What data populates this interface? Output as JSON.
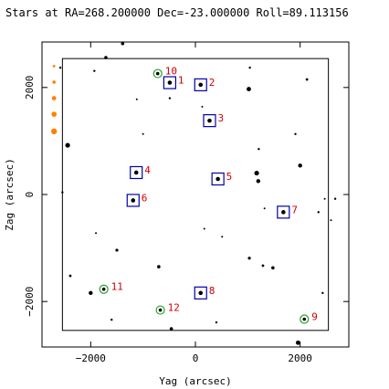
{
  "chart_data": {
    "type": "scatter",
    "title": "Stars at RA=268.200000 Dec=-23.000000 Roll=89.113156",
    "xlabel": "Yag (arcsec)",
    "ylabel": "Zag (arcsec)",
    "xlim": [
      -2930,
      2930
    ],
    "ylim": [
      -2850,
      2850
    ],
    "x_ticks": [
      -2000,
      0,
      2000
    ],
    "x_tick_labels": [
      "−2000",
      "0",
      "2000"
    ],
    "y_ticks": [
      -2000,
      0,
      2000
    ],
    "y_tick_labels": [
      "−2000",
      "0",
      "2000"
    ],
    "grid": false,
    "field_box": {
      "yag": [
        -2540,
        2540
      ],
      "zag": [
        -2540,
        2540
      ]
    },
    "colors": {
      "star": "#000000",
      "guide": "#0000aa",
      "acq": "#2aa02a",
      "label": "#d00000",
      "bad_star": "#ff8000"
    },
    "guide_stars": [
      {
        "id": "1",
        "yag": -490,
        "zag": 2090
      },
      {
        "id": "2",
        "yag": 100,
        "zag": 2050
      },
      {
        "id": "3",
        "yag": 270,
        "zag": 1380
      },
      {
        "id": "4",
        "yag": -1130,
        "zag": 410
      },
      {
        "id": "5",
        "yag": 430,
        "zag": 290
      },
      {
        "id": "6",
        "yag": -1190,
        "zag": -110
      },
      {
        "id": "7",
        "yag": 1680,
        "zag": -330
      },
      {
        "id": "8",
        "yag": 100,
        "zag": -1840
      }
    ],
    "acq_stars": [
      {
        "id": "9",
        "yag": 2080,
        "zag": -2330
      },
      {
        "id": "10",
        "yag": -720,
        "zag": 2260
      },
      {
        "id": "11",
        "yag": -1750,
        "zag": -1770
      },
      {
        "id": "12",
        "yag": -670,
        "zag": -2160
      }
    ],
    "bad_stars": [
      {
        "yag": -2700,
        "zag": 2400,
        "size": 1.4
      },
      {
        "yag": -2700,
        "zag": 2100,
        "size": 1.8
      },
      {
        "yag": -2700,
        "zag": 1800,
        "size": 2.4
      },
      {
        "yag": -2700,
        "zag": 1500,
        "size": 2.8
      },
      {
        "yag": -2700,
        "zag": 1180,
        "size": 3.2
      }
    ],
    "field_stars": [
      {
        "yag": -1390,
        "zag": 2820,
        "size": 1.8
      },
      {
        "yag": -1710,
        "zag": 2560,
        "size": 1.8
      },
      {
        "yag": -1930,
        "zag": 2310,
        "size": 1.2
      },
      {
        "yag": -2580,
        "zag": 2370,
        "size": 1.2
      },
      {
        "yag": 1040,
        "zag": 2370,
        "size": 1.2
      },
      {
        "yag": 2130,
        "zag": 2150,
        "size": 1.4
      },
      {
        "yag": 1020,
        "zag": 1970,
        "size": 2.4
      },
      {
        "yag": -490,
        "zag": 1800,
        "size": 1.2
      },
      {
        "yag": -1120,
        "zag": 1780,
        "size": 1.0
      },
      {
        "yag": 130,
        "zag": 1640,
        "size": 1.0
      },
      {
        "yag": 1910,
        "zag": 1130,
        "size": 1.2
      },
      {
        "yag": -1000,
        "zag": 1130,
        "size": 1.0
      },
      {
        "yag": -2440,
        "zag": 920,
        "size": 2.6
      },
      {
        "yag": 1210,
        "zag": 850,
        "size": 1.2
      },
      {
        "yag": 2000,
        "zag": 540,
        "size": 2.2
      },
      {
        "yag": 1170,
        "zag": 400,
        "size": 2.6
      },
      {
        "yag": 1200,
        "zag": 250,
        "size": 2.2
      },
      {
        "yag": -2540,
        "zag": 40,
        "size": 1.2
      },
      {
        "yag": 2470,
        "zag": -80,
        "size": 1.0
      },
      {
        "yag": 2670,
        "zag": -80,
        "size": 1.2
      },
      {
        "yag": 1320,
        "zag": -260,
        "size": 1.0
      },
      {
        "yag": 2350,
        "zag": -330,
        "size": 1.2
      },
      {
        "yag": 2590,
        "zag": -480,
        "size": 1.0
      },
      {
        "yag": 170,
        "zag": -640,
        "size": 1.0
      },
      {
        "yag": -1900,
        "zag": -720,
        "size": 1.0
      },
      {
        "yag": 510,
        "zag": -790,
        "size": 1.0
      },
      {
        "yag": -1500,
        "zag": -1040,
        "size": 1.6
      },
      {
        "yag": 1030,
        "zag": -1190,
        "size": 1.6
      },
      {
        "yag": 1290,
        "zag": -1330,
        "size": 1.4
      },
      {
        "yag": 1480,
        "zag": -1370,
        "size": 1.8
      },
      {
        "yag": -700,
        "zag": -1350,
        "size": 1.8
      },
      {
        "yag": -2390,
        "zag": -1520,
        "size": 1.4
      },
      {
        "yag": -2000,
        "zag": -1840,
        "size": 2.2
      },
      {
        "yag": 2430,
        "zag": -1840,
        "size": 1.2
      },
      {
        "yag": -1600,
        "zag": -2340,
        "size": 1.2
      },
      {
        "yag": 400,
        "zag": -2390,
        "size": 1.2
      },
      {
        "yag": -460,
        "zag": -2510,
        "size": 1.8
      },
      {
        "yag": 1960,
        "zag": -2770,
        "size": 2.4
      }
    ]
  }
}
